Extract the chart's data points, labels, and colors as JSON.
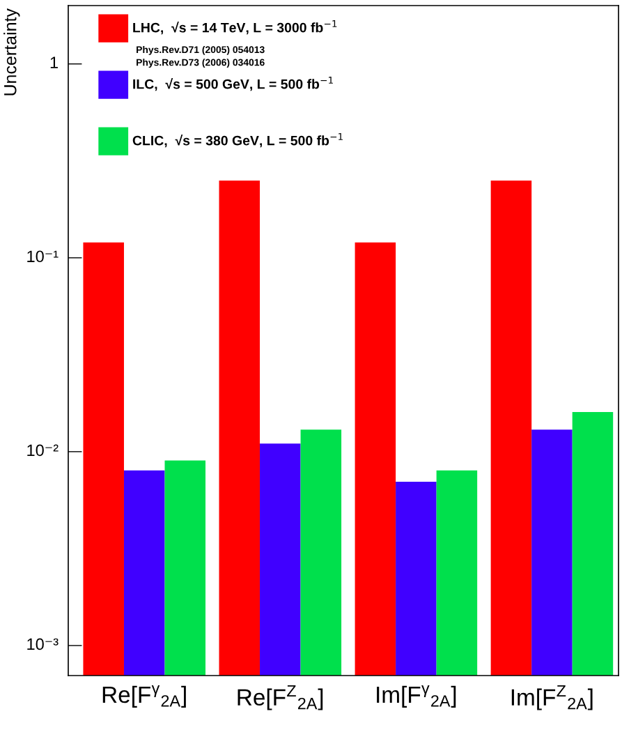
{
  "chart_data": {
    "type": "bar",
    "ylabel": "Uncertainty",
    "categories": [
      "Re[F$^{γ}$$_{2A}$]",
      "Re[F$^{Z}$$_{2A}$]",
      "Im[F$^{γ}$$_{2A}$]",
      "Im[F$^{Z}$$_{2A}$]"
    ],
    "series": [
      {
        "name": "LHC,  √s = 14 TeV, L = 3000 fb$^{−1}$",
        "color": "#ff0000",
        "values": [
          0.12,
          0.25,
          0.12,
          0.25
        ]
      },
      {
        "name": "ILC,  √s = 500 GeV, L = 500 fb$^{−1}$",
        "color": "#4000ff",
        "values": [
          0.008,
          0.011,
          0.007,
          0.013
        ]
      },
      {
        "name": "CLIC,  √s = 380 GeV, L = 500 fb$^{−1}$",
        "color": "#00e04c",
        "values": [
          0.009,
          0.013,
          0.008,
          0.016
        ]
      }
    ],
    "log": "y",
    "ylim": [
      0.0007,
      2
    ],
    "yticks": [
      {
        "value": 0.001,
        "label": "10⁻³"
      },
      {
        "value": 0.01,
        "label": "10⁻²"
      },
      {
        "value": 0.1,
        "label": "10⁻¹"
      },
      1
    ],
    "grid": false,
    "legend": "top left",
    "annotations": [
      "Phys.Rev.D71 (2005) 054013",
      "Phys.Rev.D73 (2006) 034016"
    ]
  }
}
